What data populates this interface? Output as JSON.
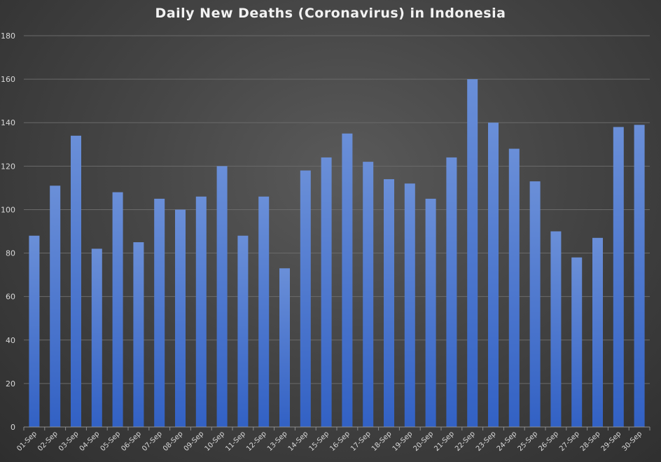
{
  "chart_data": {
    "type": "bar",
    "title": "Daily New Deaths (Coronavirus) in Indonesia",
    "categories": [
      "01-Sep",
      "02-Sep",
      "03-Sep",
      "04-Sep",
      "05-Sep",
      "06-Sep",
      "07-Sep",
      "08-Sep",
      "09-Sep",
      "10-Sep",
      "11-Sep",
      "12-Sep",
      "13-Sep",
      "14-Sep",
      "15-Sep",
      "16-Sep",
      "17-Sep",
      "18-Sep",
      "19-Sep",
      "20-Sep",
      "21-Sep",
      "22-Sep",
      "23-Sep",
      "24-Sep",
      "25-Sep",
      "26-Sep",
      "27-Sep",
      "28-Sep",
      "29-Sep",
      "30-Sep"
    ],
    "values": [
      88,
      111,
      134,
      82,
      108,
      85,
      105,
      100,
      106,
      120,
      88,
      106,
      73,
      118,
      124,
      135,
      122,
      114,
      112,
      105,
      124,
      160,
      140,
      128,
      113,
      90,
      78,
      87,
      138,
      139
    ],
    "ylim": [
      0,
      180
    ],
    "yticks": [
      0,
      20,
      40,
      60,
      80,
      100,
      120,
      140,
      160,
      180
    ],
    "grid": true,
    "colors": {
      "bar_top": "#6a8fd8",
      "bar_bottom": "#3261c4",
      "background": "#404040"
    }
  }
}
